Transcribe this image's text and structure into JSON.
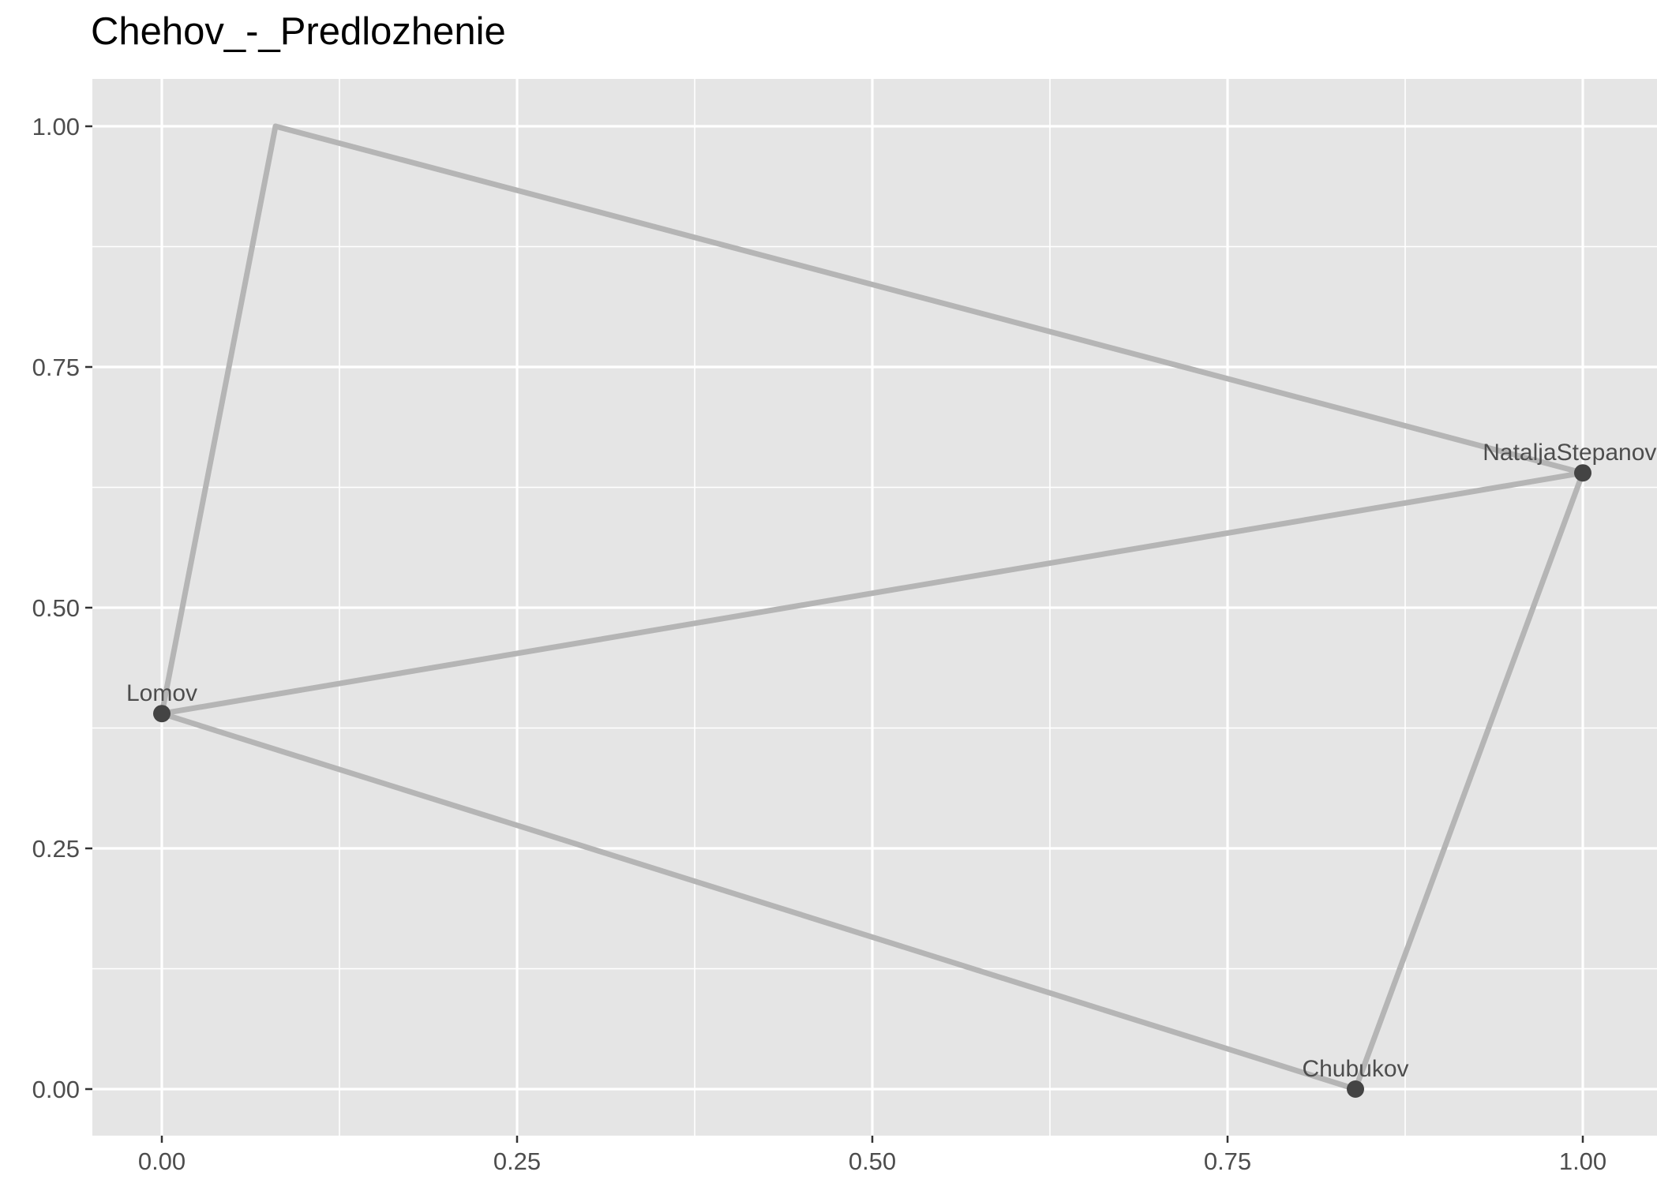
{
  "chart_data": {
    "type": "network",
    "title": "Chehov_-_Predlozhenie",
    "xlabel": "",
    "ylabel": "",
    "xlim": [
      -0.05,
      1.05
    ],
    "ylim": [
      -0.05,
      1.05
    ],
    "x_ticks": [
      {
        "value": 0.0,
        "label": "0.00"
      },
      {
        "value": 0.25,
        "label": "0.25"
      },
      {
        "value": 0.5,
        "label": "0.50"
      },
      {
        "value": 0.75,
        "label": "0.75"
      },
      {
        "value": 1.0,
        "label": "1.00"
      }
    ],
    "y_ticks": [
      {
        "value": 0.0,
        "label": "0.00"
      },
      {
        "value": 0.25,
        "label": "0.25"
      },
      {
        "value": 0.5,
        "label": "0.50"
      },
      {
        "value": 0.75,
        "label": "0.75"
      },
      {
        "value": 1.0,
        "label": "1.00"
      }
    ],
    "grid": true,
    "legend": "none",
    "colors": {
      "panel_background": "#e5e5e5",
      "grid": "#ffffff",
      "edge": "#b5b5b5",
      "point": "#444444",
      "label": "#4d4d4d"
    },
    "nodes": [
      {
        "name": "Lomov",
        "x": 0.0,
        "y": 0.39,
        "shown": true
      },
      {
        "name": "NataljaStepanovna",
        "x": 1.0,
        "y": 0.64,
        "shown": true
      },
      {
        "name": "Chubukov",
        "x": 0.84,
        "y": 0.0,
        "shown": true
      },
      {
        "name": "",
        "x": 0.08,
        "y": 1.0,
        "shown": false
      }
    ],
    "edges": [
      {
        "from": 0,
        "to": 1
      },
      {
        "from": 0,
        "to": 2
      },
      {
        "from": 0,
        "to": 3
      },
      {
        "from": 1,
        "to": 2
      },
      {
        "from": 1,
        "to": 3
      }
    ]
  }
}
